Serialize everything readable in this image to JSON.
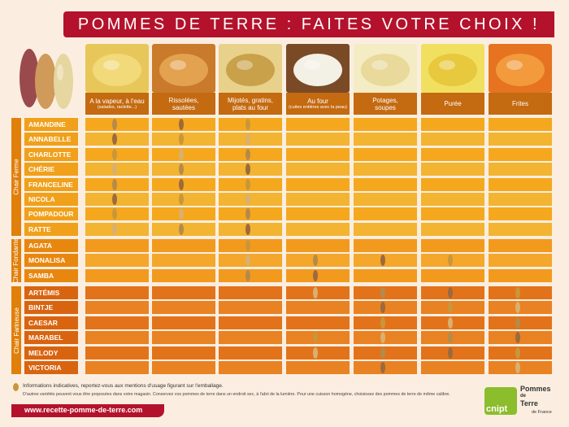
{
  "title": "POMMES DE TERRE : FAITES VOTRE CHOIX !",
  "colors": {
    "banner": "#b4122c",
    "potato": "#c9963a",
    "orange_dark": "#e07f0a"
  },
  "columns": [
    {
      "label": "A la vapeur, à l'eau",
      "sub": "(salades, raclette...)"
    },
    {
      "label": "Rissolées,",
      "label2": "sautées"
    },
    {
      "label": "Mijotés, gratins,",
      "label2": "plats au four"
    },
    {
      "label": "Au four",
      "sub": "(cuites entières avec la peau)"
    },
    {
      "label": "Potages,",
      "label2": "soupes"
    },
    {
      "label": "Purée"
    },
    {
      "label": "Frites"
    }
  ],
  "groups": [
    {
      "label": "Chair Ferme",
      "rows": [
        {
          "name": "AMANDINE",
          "marks": [
            1,
            1,
            1,
            0,
            0,
            0,
            0
          ]
        },
        {
          "name": "ANNABELLE",
          "marks": [
            1,
            1,
            1,
            0,
            0,
            0,
            0
          ]
        },
        {
          "name": "CHARLOTTE",
          "marks": [
            1,
            1,
            1,
            0,
            0,
            0,
            0
          ]
        },
        {
          "name": "CHÉRIE",
          "marks": [
            1,
            1,
            1,
            0,
            0,
            0,
            0
          ]
        },
        {
          "name": "FRANCELINE",
          "marks": [
            1,
            1,
            1,
            0,
            0,
            0,
            0
          ]
        },
        {
          "name": "NICOLA",
          "marks": [
            1,
            1,
            1,
            0,
            0,
            0,
            0
          ]
        },
        {
          "name": "POMPADOUR",
          "marks": [
            1,
            1,
            1,
            0,
            0,
            0,
            0
          ]
        },
        {
          "name": "RATTE",
          "marks": [
            1,
            1,
            1,
            0,
            0,
            0,
            0
          ]
        }
      ]
    },
    {
      "label": "Chair Fondante",
      "rows": [
        {
          "name": "AGATA",
          "marks": [
            0,
            0,
            1,
            0,
            0,
            0,
            0
          ]
        },
        {
          "name": "MONALISA",
          "marks": [
            0,
            0,
            1,
            1,
            1,
            1,
            0
          ]
        },
        {
          "name": "SAMBA",
          "marks": [
            0,
            0,
            1,
            1,
            0,
            0,
            0
          ]
        }
      ]
    },
    {
      "label": "Chair Farineuse",
      "rows": [
        {
          "name": "ARTÉMIS",
          "marks": [
            0,
            0,
            0,
            1,
            1,
            1,
            1
          ]
        },
        {
          "name": "BINTJE",
          "marks": [
            0,
            0,
            0,
            0,
            1,
            1,
            1
          ]
        },
        {
          "name": "CAESAR",
          "marks": [
            0,
            0,
            0,
            0,
            1,
            1,
            1
          ]
        },
        {
          "name": "MARABEL",
          "marks": [
            0,
            0,
            0,
            1,
            1,
            1,
            1
          ]
        },
        {
          "name": "MELODY",
          "marks": [
            0,
            0,
            0,
            1,
            1,
            1,
            1
          ]
        },
        {
          "name": "VICTORIA",
          "marks": [
            0,
            0,
            0,
            0,
            1,
            0,
            1
          ]
        }
      ]
    }
  ],
  "footer": {
    "note1": "Informations indicatives, reportez-vous aux mentions d'usage figurant sur l'emballage.",
    "note2": "D'autres variétés peuvent vous être proposées dans votre magasin. Conservez vos pommes de terre dans un endroit sec, à l'abri de la lumière. Pour une cuisson homogène, choisissez des pommes de terre de même calibre.",
    "url": "www.recette-pomme-de-terre.com",
    "logo_word": "cnipt",
    "logo_line1": "Pommes",
    "logo_line2": "de",
    "logo_line3": "Terre",
    "logo_sub": "de France"
  }
}
